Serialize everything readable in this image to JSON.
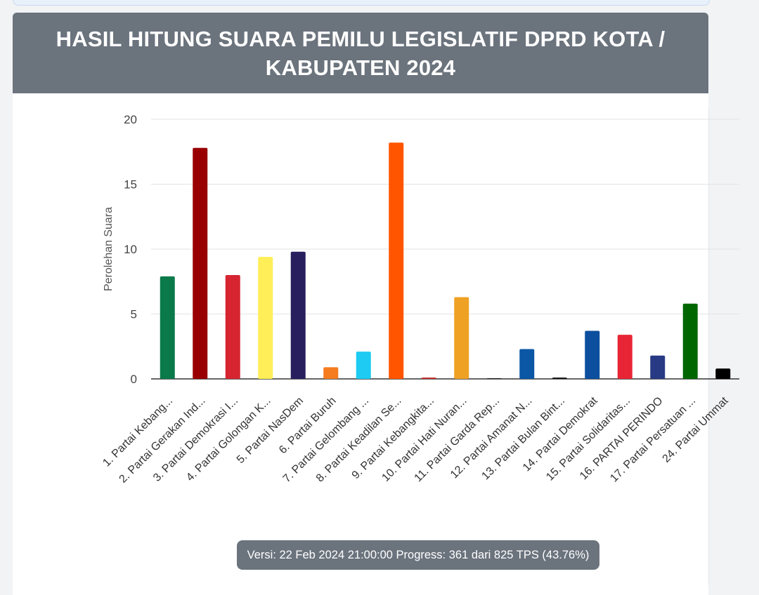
{
  "header": {
    "title": "HASIL HITUNG SUARA PEMILU LEGISLATIF DPRD KOTA / KABUPATEN 2024"
  },
  "footer": {
    "version_text": "Versi: 22 Feb 2024 21:00:00 Progress: 361 dari 825 TPS (43.76%)"
  },
  "chart_data": {
    "type": "bar",
    "title": "HASIL HITUNG SUARA PEMILU LEGISLATIF DPRD KOTA / KABUPATEN 2024",
    "xlabel": "",
    "ylabel": "Perolehan Suara",
    "ylim": [
      0,
      20
    ],
    "yticks": [
      0,
      5,
      10,
      15,
      20
    ],
    "grid": true,
    "legend": "none",
    "categories": [
      "1. Partai Kebang...",
      "2. Partai Gerakan Ind...",
      "3. Partai Demokrasi I...",
      "4. Partai Golongan K...",
      "5. Partai NasDem",
      "6. Partai Buruh",
      "7. Partai Gelombang ...",
      "8. Partai Keadilan Se...",
      "9. Partai Kebangkita...",
      "10. Partai Hati Nuran...",
      "11. Partai Garda Rep...",
      "12. Partai Amanat N...",
      "13. Partai Bulan Bint...",
      "14. Partai Demokrat",
      "15. Partai Solidaritas...",
      "16. PARTAI PERINDO",
      "17. Partai Persatuan ...",
      "24. Partai Ummat"
    ],
    "values": [
      7.9,
      17.8,
      8.0,
      9.4,
      9.8,
      0.9,
      2.1,
      18.2,
      0.1,
      6.3,
      0.05,
      2.3,
      0.1,
      3.7,
      3.4,
      1.8,
      5.8,
      0.8
    ],
    "colors": [
      "#0a7a4a",
      "#990000",
      "#d62431",
      "#ffee58",
      "#271f5e",
      "#f57c1f",
      "#1ecbf2",
      "#ff5500",
      "#c62828",
      "#efa124",
      "#222222",
      "#0b57a6",
      "#111111",
      "#0b4f9e",
      "#e82535",
      "#283a83",
      "#006600",
      "#000000"
    ]
  }
}
